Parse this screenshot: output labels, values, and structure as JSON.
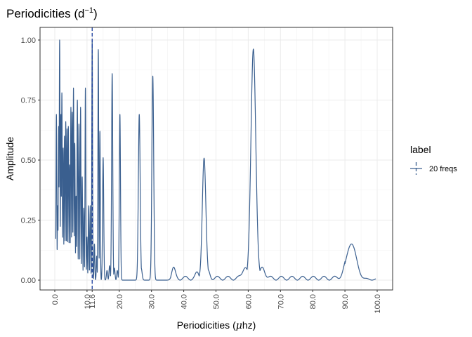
{
  "title_main": "Periodicities (d",
  "title_sup": "−1",
  "title_close": ")",
  "chart_data": {
    "type": "line",
    "title": "Periodicities (d−1)",
    "xlabel_prefix": "Periodicities (",
    "xlabel_mu": "μ",
    "xlabel_suffix": "hz)",
    "ylabel": "Amplitude",
    "xlim": [
      0,
      100
    ],
    "ylim": [
      0,
      1
    ],
    "x_ticks": [
      0,
      10,
      11.6,
      20,
      30,
      40,
      50,
      60,
      70,
      80,
      90,
      100
    ],
    "x_tick_labels": [
      "0.0",
      "10.0",
      "11.6",
      "20.0",
      "30.0",
      "40.0",
      "50.0",
      "60.0",
      "70.0",
      "80.0",
      "90.0",
      "100.0"
    ],
    "y_ticks": [
      0,
      0.25,
      0.5,
      0.75,
      1
    ],
    "y_tick_labels": [
      "0.00",
      "0.25",
      "0.50",
      "0.75",
      "1.00"
    ],
    "grid": true,
    "vline": {
      "x": 11.6,
      "style": "dashed"
    },
    "peaks": [
      {
        "x": 0.5,
        "y": 0.69
      },
      {
        "x": 0.9,
        "y": 0.31
      },
      {
        "x": 1.2,
        "y": 0.64
      },
      {
        "x": 1.5,
        "y": 1.0
      },
      {
        "x": 1.9,
        "y": 0.69
      },
      {
        "x": 2.2,
        "y": 0.78
      },
      {
        "x": 2.6,
        "y": 0.55
      },
      {
        "x": 3.0,
        "y": 0.6
      },
      {
        "x": 3.4,
        "y": 0.66
      },
      {
        "x": 3.8,
        "y": 0.63
      },
      {
        "x": 4.2,
        "y": 0.64
      },
      {
        "x": 4.6,
        "y": 0.48
      },
      {
        "x": 5.0,
        "y": 0.72
      },
      {
        "x": 5.4,
        "y": 0.7
      },
      {
        "x": 5.8,
        "y": 0.8
      },
      {
        "x": 6.2,
        "y": 0.57
      },
      {
        "x": 6.6,
        "y": 0.35
      },
      {
        "x": 7.0,
        "y": 0.75
      },
      {
        "x": 7.5,
        "y": 0.65
      },
      {
        "x": 8.0,
        "y": 0.72
      },
      {
        "x": 8.5,
        "y": 0.43
      },
      {
        "x": 9.0,
        "y": 0.3
      },
      {
        "x": 9.5,
        "y": 0.8
      },
      {
        "x": 10.0,
        "y": 0.18
      },
      {
        "x": 10.5,
        "y": 0.31
      },
      {
        "x": 11.0,
        "y": 0.31
      },
      {
        "x": 11.6,
        "y": 1.0
      },
      {
        "x": 12.3,
        "y": 0.15
      },
      {
        "x": 13.0,
        "y": 0.1
      },
      {
        "x": 13.5,
        "y": 0.96
      },
      {
        "x": 14.0,
        "y": 0.62
      },
      {
        "x": 15.0,
        "y": 0.51
      },
      {
        "x": 16.2,
        "y": 0.04
      },
      {
        "x": 17.0,
        "y": 0.06
      },
      {
        "x": 17.8,
        "y": 0.86
      },
      {
        "x": 18.5,
        "y": 0.05
      },
      {
        "x": 19.4,
        "y": 0.04
      },
      {
        "x": 20.2,
        "y": 0.69
      },
      {
        "x": 26.2,
        "y": 0.69
      },
      {
        "x": 26.8,
        "y": 0.05
      },
      {
        "x": 30.4,
        "y": 0.85
      },
      {
        "x": 36.8,
        "y": 0.04
      },
      {
        "x": 44.2,
        "y": 0.02
      },
      {
        "x": 46.3,
        "y": 0.5
      },
      {
        "x": 47.6,
        "y": 0.03
      },
      {
        "x": 59.0,
        "y": 0.05
      },
      {
        "x": 61.6,
        "y": 0.96
      },
      {
        "x": 64.5,
        "y": 0.045
      },
      {
        "x": 92.0,
        "y": 0.15
      }
    ],
    "series": [
      {
        "name": "20 freqs",
        "color": "#3a5f8f"
      }
    ],
    "legend": {
      "title": "label",
      "position": "right"
    }
  }
}
